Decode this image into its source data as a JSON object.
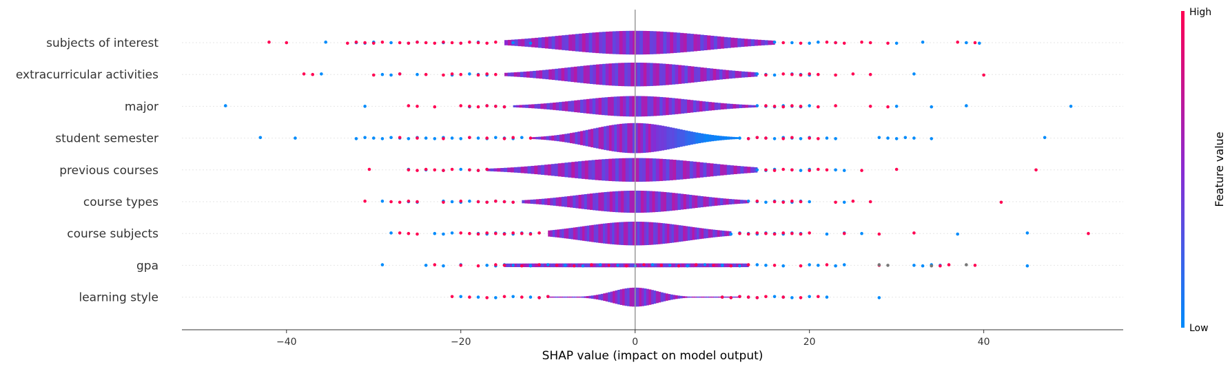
{
  "chart_data": {
    "type": "violin",
    "xlabel": "SHAP value (impact on model output)",
    "xlim": [
      -52,
      56
    ],
    "xticks": [
      -40,
      -20,
      0,
      20,
      40
    ],
    "xtick_labels": [
      "−40",
      "−20",
      "0",
      "20",
      "40"
    ],
    "colorbar": {
      "title": "Feature value",
      "high_label": "High",
      "low_label": "Low",
      "low_color": "#008bfb",
      "high_color": "#ff0052"
    },
    "features": [
      {
        "name": "subjects of interest",
        "halfwidth": 15,
        "spread": 8.5,
        "body": [
          -15,
          16
        ],
        "blue": [
          -35.5,
          -32,
          -31,
          -30,
          -28,
          -26,
          -25,
          -22,
          -20,
          -18,
          -14,
          -12,
          16,
          18,
          20,
          21,
          23,
          30,
          33,
          38,
          39.5
        ],
        "pink": [
          -42,
          -40,
          -33,
          -32,
          -31,
          -30,
          -29,
          -27,
          -26,
          -25,
          -24,
          -23,
          -22,
          -21,
          -20,
          -19,
          -18,
          -17,
          -16,
          17,
          19,
          22,
          23,
          24,
          26,
          27,
          29,
          37,
          39
        ]
      },
      {
        "name": "extracurricular activities",
        "halfwidth": 15,
        "spread": 7.5,
        "body": [
          -15,
          14
        ],
        "blue": [
          -36,
          -29,
          -28,
          -27,
          -25,
          -21,
          -19,
          -18,
          -17,
          14,
          15,
          16,
          18,
          19,
          20,
          32
        ],
        "pink": [
          -38,
          -37,
          -30,
          -27,
          -24,
          -22,
          -21,
          -20,
          -18,
          -17,
          -16,
          15,
          17,
          18,
          19,
          20,
          21,
          23,
          25,
          27,
          40
        ]
      },
      {
        "name": "major",
        "halfwidth": 13,
        "spread": 6.5,
        "body": [
          -14,
          14
        ],
        "blue": [
          -47,
          -31,
          -19,
          -17,
          -16,
          -15,
          14,
          15,
          16,
          17,
          18,
          19,
          20,
          30,
          34,
          38,
          50
        ],
        "pink": [
          -26,
          -25,
          -23,
          -20,
          -19,
          -18,
          -17,
          -16,
          -15,
          15,
          16,
          17,
          18,
          19,
          21,
          23,
          27,
          29
        ]
      },
      {
        "name": "student semester",
        "halfwidth": 19,
        "spread": 5,
        "body": [
          -12,
          12
        ],
        "blue": [
          -43,
          -39,
          -32,
          -31,
          -30,
          -29,
          -28,
          -27,
          -26,
          -25,
          -24,
          -23,
          -22,
          -21,
          -20,
          -19,
          -18,
          -17,
          -16,
          -15,
          -14,
          -13,
          12,
          13,
          14,
          15,
          16,
          17,
          18,
          19,
          20,
          22,
          23,
          28,
          29,
          30,
          31,
          32,
          34,
          47
        ],
        "pink": [
          -27,
          -25,
          -22,
          -19,
          -17,
          -15,
          -14,
          -12,
          13,
          14,
          15,
          17,
          18,
          20,
          21
        ]
      },
      {
        "name": "previous courses",
        "halfwidth": 15,
        "spread": 8,
        "body": [
          -17,
          14
        ],
        "blue": [
          -26,
          -24,
          -22,
          -20,
          -19,
          -18,
          -17,
          14,
          15,
          16,
          18,
          19,
          20,
          23,
          24
        ],
        "pink": [
          -30.5,
          -26,
          -25,
          -24,
          -23,
          -22,
          -21,
          -19,
          -18,
          -17,
          15,
          16,
          17,
          18,
          20,
          21,
          22,
          26,
          30,
          46
        ]
      },
      {
        "name": "course types",
        "halfwidth": 14,
        "spread": 6.5,
        "body": [
          -13,
          13
        ],
        "blue": [
          -29,
          -26,
          -25,
          -22,
          -21,
          -20,
          -19,
          -18,
          -17,
          -16,
          -15,
          -14,
          13,
          14,
          15,
          16,
          17,
          18,
          19,
          20,
          24
        ],
        "pink": [
          -31,
          -28,
          -27,
          -26,
          -25,
          -22,
          -20,
          -18,
          -17,
          -16,
          -15,
          -14,
          14,
          16,
          17,
          18,
          19,
          23,
          25,
          27,
          42
        ]
      },
      {
        "name": "course subjects",
        "halfwidth": 15,
        "spread": 6,
        "body": [
          -10,
          11
        ],
        "blue": [
          -28,
          -23,
          -22,
          -21,
          -18,
          -17,
          -16,
          -15,
          -14,
          -13,
          -12,
          11,
          12,
          13,
          14,
          15,
          16,
          17,
          18,
          19,
          22,
          24,
          26,
          37,
          45
        ],
        "pink": [
          -27,
          -26,
          -25,
          -20,
          -19,
          -18,
          -17,
          -16,
          -15,
          -14,
          -13,
          -12,
          -11,
          12,
          13,
          14,
          15,
          16,
          17,
          18,
          19,
          20,
          24,
          28,
          32,
          52
        ]
      },
      {
        "name": "gpa",
        "halfwidth": 2.5,
        "spread": 30,
        "body": [
          -15,
          13
        ],
        "blue": [
          -29,
          -24,
          -22,
          -20,
          -17,
          -16,
          -15,
          -14,
          -12,
          -10,
          -8,
          -6,
          -4,
          -2,
          0,
          2,
          4,
          6,
          8,
          10,
          12,
          14,
          15,
          17,
          20,
          21,
          23,
          24,
          32,
          33,
          34,
          35,
          45
        ],
        "pink": [
          -23,
          -20,
          -18,
          -16,
          -15,
          -13,
          -11,
          -9,
          -7,
          -5,
          -3,
          -1,
          1,
          3,
          5,
          7,
          9,
          11,
          13,
          16,
          19,
          22,
          28,
          35,
          36,
          39
        ],
        "grey": [
          28,
          29,
          34,
          38
        ]
      },
      {
        "name": "learning style",
        "halfwidth": 12,
        "spread": 2.6,
        "body": [
          -10,
          12
        ],
        "blue": [
          -20,
          -18,
          -16,
          -14,
          -12,
          -11,
          -10,
          10,
          11,
          12,
          13,
          14,
          16,
          17,
          18,
          20,
          22,
          28
        ],
        "pink": [
          -21,
          -19,
          -17,
          -15,
          -13,
          -11,
          -10,
          10,
          11,
          12,
          13,
          14,
          15,
          17,
          19,
          21
        ]
      }
    ]
  }
}
